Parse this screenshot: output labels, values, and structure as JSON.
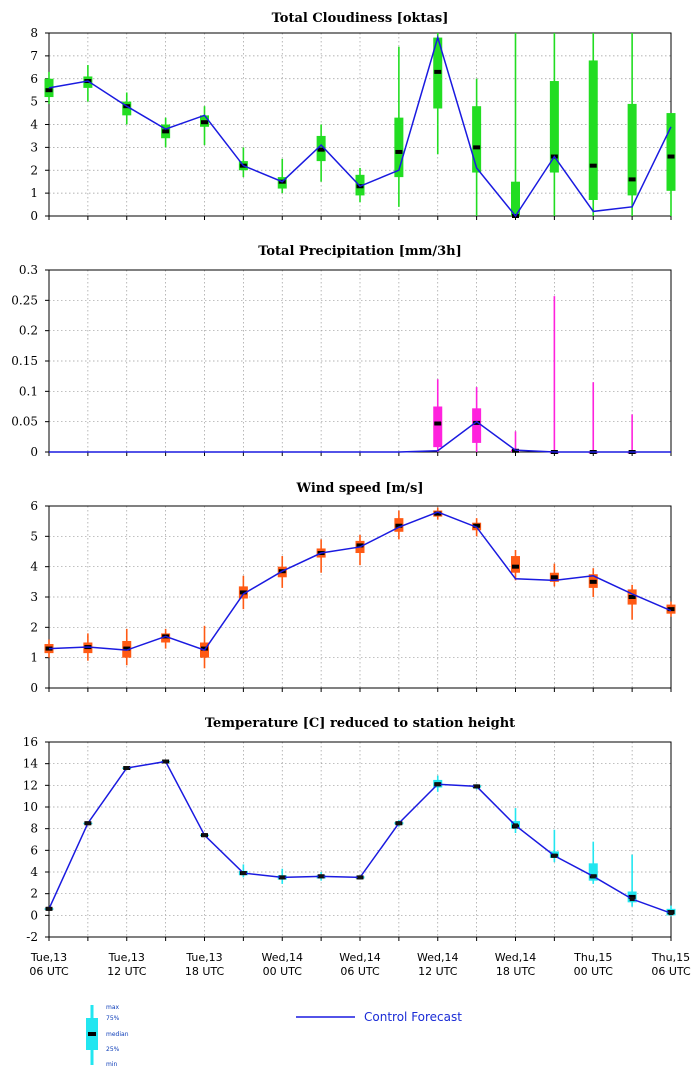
{
  "colors": {
    "control_line": "#1a1ae0",
    "cloud_box": "#22dd22",
    "precip_box": "#ff22dd",
    "wind_box": "#ff5a14",
    "temp_box": "#22e6f0",
    "median": "#000000"
  },
  "x_labels": [
    {
      "day": "Tue,13",
      "time": "06 UTC",
      "index": 0
    },
    {
      "day": "Tue,13",
      "time": "12 UTC",
      "index": 2
    },
    {
      "day": "Tue,13",
      "time": "18 UTC",
      "index": 4
    },
    {
      "day": "Wed,14",
      "time": "00 UTC",
      "index": 6
    },
    {
      "day": "Wed,14",
      "time": "06 UTC",
      "index": 8
    },
    {
      "day": "Wed,14",
      "time": "12 UTC",
      "index": 10
    },
    {
      "day": "Wed,14",
      "time": "18 UTC",
      "index": 12
    },
    {
      "day": "Thu,15",
      "time": "00 UTC",
      "index": 14
    },
    {
      "day": "Thu,15",
      "time": "06 UTC",
      "index": 16
    }
  ],
  "legend": {
    "box_labels": [
      "max",
      "75%",
      "median",
      "25%",
      "min"
    ],
    "line_label": "Control Forecast"
  },
  "chart_data": [
    {
      "type": "line",
      "title": "Total Cloudiness [oktas]",
      "ylim": [
        0,
        8
      ],
      "yticks": [
        "0",
        "1",
        "2",
        "3",
        "4",
        "5",
        "6",
        "7",
        "8"
      ],
      "ytick_values": [
        0,
        1,
        2,
        3,
        4,
        5,
        6,
        7,
        8
      ],
      "grid": true,
      "control": [
        5.6,
        5.9,
        4.8,
        3.8,
        4.4,
        2.2,
        1.5,
        3.1,
        1.3,
        2.0,
        7.8,
        2.1,
        0.0,
        2.6,
        0.2,
        0.4,
        3.9
      ],
      "boxes": [
        {
          "min": 4.9,
          "q1": 5.2,
          "median": 5.5,
          "q3": 6.0,
          "max": 6.3
        },
        {
          "min": 5.0,
          "q1": 5.6,
          "median": 5.9,
          "q3": 6.1,
          "max": 6.6
        },
        {
          "min": 4.0,
          "q1": 4.4,
          "median": 4.8,
          "q3": 5.0,
          "max": 5.4
        },
        {
          "min": 3.0,
          "q1": 3.4,
          "median": 3.7,
          "q3": 4.0,
          "max": 4.3
        },
        {
          "min": 3.1,
          "q1": 3.9,
          "median": 4.1,
          "q3": 4.4,
          "max": 4.8
        },
        {
          "min": 1.7,
          "q1": 2.0,
          "median": 2.2,
          "q3": 2.4,
          "max": 3.0
        },
        {
          "min": 1.0,
          "q1": 1.2,
          "median": 1.5,
          "q3": 1.7,
          "max": 2.5
        },
        {
          "min": 1.5,
          "q1": 2.4,
          "median": 2.9,
          "q3": 3.5,
          "max": 4.0
        },
        {
          "min": 0.6,
          "q1": 0.9,
          "median": 1.3,
          "q3": 1.8,
          "max": 2.1
        },
        {
          "min": 0.4,
          "q1": 1.7,
          "median": 2.8,
          "q3": 4.3,
          "max": 7.4
        },
        {
          "min": 2.7,
          "q1": 4.7,
          "median": 6.3,
          "q3": 7.8,
          "max": 8.0
        },
        {
          "min": 0.0,
          "q1": 1.9,
          "median": 3.0,
          "q3": 4.8,
          "max": 6.0
        },
        {
          "min": 0.0,
          "q1": 0.0,
          "median": 0.0,
          "q3": 1.5,
          "max": 8.0
        },
        {
          "min": 0.0,
          "q1": 1.9,
          "median": 2.6,
          "q3": 5.9,
          "max": 8.0
        },
        {
          "min": 0.0,
          "q1": 0.7,
          "median": 2.2,
          "q3": 6.8,
          "max": 8.0
        },
        {
          "min": 0.0,
          "q1": 0.9,
          "median": 1.6,
          "q3": 4.9,
          "max": 8.0
        },
        {
          "min": 0.0,
          "q1": 1.1,
          "median": 2.6,
          "q3": 4.5,
          "max": 4.5
        }
      ]
    },
    {
      "type": "line",
      "title": "Total Precipitation [mm/3h]",
      "ylim": [
        0,
        0.3
      ],
      "yticks": [
        "0",
        "0.05",
        "0.1",
        "0.15",
        "0.2",
        "0.25",
        "0.3"
      ],
      "ytick_values": [
        0,
        0.05,
        0.1,
        0.15,
        0.2,
        0.25,
        0.3
      ],
      "grid": true,
      "control": [
        0,
        0,
        0,
        0,
        0,
        0,
        0,
        0,
        0,
        0,
        0.002,
        0.05,
        0.003,
        0,
        0,
        0,
        0
      ],
      "boxes": [
        null,
        null,
        null,
        null,
        null,
        null,
        null,
        null,
        null,
        null,
        {
          "min": 0.0,
          "q1": 0.008,
          "median": 0.047,
          "q3": 0.075,
          "max": 0.12
        },
        {
          "min": 0.0,
          "q1": 0.015,
          "median": 0.048,
          "q3": 0.072,
          "max": 0.107
        },
        {
          "min": 0.0,
          "q1": 0.0,
          "median": 0.002,
          "q3": 0.004,
          "max": 0.034
        },
        {
          "min": 0.0,
          "q1": 0.0,
          "median": 0.0,
          "q3": 0.0,
          "max": 0.257
        },
        {
          "min": 0.0,
          "q1": 0.0,
          "median": 0.0,
          "q3": 0.0,
          "max": 0.115
        },
        {
          "min": 0.0,
          "q1": 0.0,
          "median": 0.0,
          "q3": 0.0,
          "max": 0.062
        },
        null
      ]
    },
    {
      "type": "line",
      "title": "Wind speed [m/s]",
      "ylim": [
        0,
        6
      ],
      "yticks": [
        "0",
        "1",
        "2",
        "3",
        "4",
        "5",
        "6"
      ],
      "ytick_values": [
        0,
        1,
        2,
        3,
        4,
        5,
        6
      ],
      "grid": true,
      "control": [
        1.3,
        1.35,
        1.25,
        1.7,
        1.25,
        3.1,
        3.85,
        4.45,
        4.65,
        5.3,
        5.8,
        5.3,
        3.6,
        3.55,
        3.7,
        3.1,
        2.55
      ],
      "boxes": [
        {
          "min": 1.0,
          "q1": 1.15,
          "median": 1.3,
          "q3": 1.45,
          "max": 1.6
        },
        {
          "min": 0.9,
          "q1": 1.15,
          "median": 1.35,
          "q3": 1.5,
          "max": 1.8
        },
        {
          "min": 0.75,
          "q1": 1.0,
          "median": 1.3,
          "q3": 1.55,
          "max": 1.95
        },
        {
          "min": 1.3,
          "q1": 1.5,
          "median": 1.7,
          "q3": 1.8,
          "max": 1.95
        },
        {
          "min": 0.65,
          "q1": 1.0,
          "median": 1.3,
          "q3": 1.5,
          "max": 2.05
        },
        {
          "min": 2.6,
          "q1": 2.95,
          "median": 3.15,
          "q3": 3.35,
          "max": 3.7
        },
        {
          "min": 3.3,
          "q1": 3.65,
          "median": 3.85,
          "q3": 4.0,
          "max": 4.35
        },
        {
          "min": 3.8,
          "q1": 4.3,
          "median": 4.45,
          "q3": 4.6,
          "max": 4.9
        },
        {
          "min": 4.05,
          "q1": 4.45,
          "median": 4.7,
          "q3": 4.85,
          "max": 5.05
        },
        {
          "min": 4.9,
          "q1": 5.15,
          "median": 5.35,
          "q3": 5.6,
          "max": 5.85
        },
        {
          "min": 5.55,
          "q1": 5.65,
          "median": 5.75,
          "q3": 5.85,
          "max": 5.95
        },
        {
          "min": 5.0,
          "q1": 5.2,
          "median": 5.35,
          "q3": 5.45,
          "max": 5.6
        },
        {
          "min": 3.55,
          "q1": 3.8,
          "median": 4.0,
          "q3": 4.35,
          "max": 4.55
        },
        {
          "min": 3.35,
          "q1": 3.5,
          "median": 3.65,
          "q3": 3.8,
          "max": 4.1
        },
        {
          "min": 3.0,
          "q1": 3.3,
          "median": 3.5,
          "q3": 3.75,
          "max": 3.95
        },
        {
          "min": 2.25,
          "q1": 2.75,
          "median": 3.0,
          "q3": 3.25,
          "max": 3.4
        },
        {
          "min": 2.35,
          "q1": 2.45,
          "median": 2.6,
          "q3": 2.75,
          "max": 2.85
        }
      ]
    },
    {
      "type": "line",
      "title": "Temperature [C] reduced to station height",
      "ylim": [
        -2,
        16
      ],
      "yticks": [
        "-2",
        "0",
        "2",
        "4",
        "6",
        "8",
        "10",
        "12",
        "14",
        "16"
      ],
      "ytick_values": [
        -2,
        0,
        2,
        4,
        6,
        8,
        10,
        12,
        14,
        16
      ],
      "grid": true,
      "control": [
        0.6,
        8.5,
        13.6,
        14.2,
        7.4,
        3.9,
        3.5,
        3.6,
        3.5,
        8.5,
        12.1,
        11.9,
        8.3,
        5.5,
        3.6,
        1.5,
        0.2
      ],
      "boxes": [
        {
          "min": 0.5,
          "q1": 0.55,
          "median": 0.6,
          "q3": 0.65,
          "max": 0.7
        },
        {
          "min": 8.4,
          "q1": 8.45,
          "median": 8.5,
          "q3": 8.55,
          "max": 8.6
        },
        {
          "min": 13.5,
          "q1": 13.55,
          "median": 13.6,
          "q3": 13.65,
          "max": 13.7
        },
        {
          "min": 14.1,
          "q1": 14.15,
          "median": 14.2,
          "q3": 14.25,
          "max": 14.3
        },
        {
          "min": 7.3,
          "q1": 7.35,
          "median": 7.4,
          "q3": 7.45,
          "max": 7.5
        },
        {
          "min": 3.5,
          "q1": 3.7,
          "median": 3.9,
          "q3": 4.1,
          "max": 4.7
        },
        {
          "min": 2.9,
          "q1": 3.3,
          "median": 3.5,
          "q3": 3.7,
          "max": 4.3
        },
        {
          "min": 3.2,
          "q1": 3.4,
          "median": 3.6,
          "q3": 3.7,
          "max": 4.0
        },
        {
          "min": 3.3,
          "q1": 3.4,
          "median": 3.5,
          "q3": 3.6,
          "max": 3.7
        },
        {
          "min": 8.2,
          "q1": 8.4,
          "median": 8.5,
          "q3": 8.6,
          "max": 8.8
        },
        {
          "min": 11.4,
          "q1": 11.8,
          "median": 12.1,
          "q3": 12.5,
          "max": 12.9
        },
        {
          "min": 11.6,
          "q1": 11.8,
          "median": 11.9,
          "q3": 12.0,
          "max": 12.1
        },
        {
          "min": 7.6,
          "q1": 8.0,
          "median": 8.2,
          "q3": 8.7,
          "max": 9.9
        },
        {
          "min": 4.9,
          "q1": 5.3,
          "median": 5.5,
          "q3": 5.9,
          "max": 7.9
        },
        {
          "min": 2.9,
          "q1": 3.2,
          "median": 3.6,
          "q3": 4.8,
          "max": 6.8
        },
        {
          "min": 0.8,
          "q1": 1.2,
          "median": 1.7,
          "q3": 2.2,
          "max": 5.6
        },
        {
          "min": -0.1,
          "q1": 0.0,
          "median": 0.3,
          "q3": 0.6,
          "max": 0.9
        }
      ]
    }
  ]
}
